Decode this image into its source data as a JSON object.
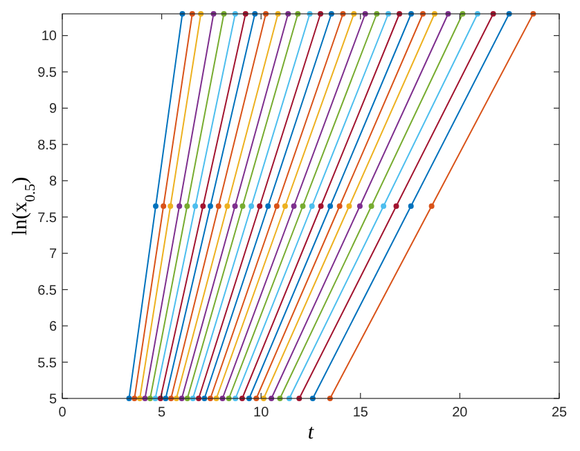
{
  "chart_data": {
    "type": "line",
    "xlabel": "t",
    "ylabel": "ln(x$_{0.5}$)",
    "xlim": [
      0,
      25
    ],
    "ylim": [
      5,
      10.3
    ],
    "xticks": [
      0,
      5,
      10,
      15,
      20,
      25
    ],
    "yticks": [
      5,
      5.5,
      6,
      6.5,
      7,
      7.5,
      8,
      8.5,
      9,
      9.5,
      10
    ],
    "grid": false,
    "marker": "circle",
    "line_style": "solid",
    "series": [
      {
        "color": "#0072bd",
        "x": [
          3.36,
          4.7,
          6.04
        ],
        "values": [
          5,
          7.65,
          10.3
        ]
      },
      {
        "color": "#d95319",
        "x": [
          3.63,
          5.09,
          6.54
        ],
        "values": [
          5,
          7.65,
          10.3
        ]
      },
      {
        "color": "#edb120",
        "x": [
          3.9,
          5.44,
          6.97
        ],
        "values": [
          5,
          7.65,
          10.3
        ]
      },
      {
        "color": "#7e2f8e",
        "x": [
          4.16,
          5.89,
          7.61
        ],
        "values": [
          5,
          7.65,
          10.3
        ]
      },
      {
        "color": "#77ac30",
        "x": [
          4.42,
          6.28,
          8.13
        ],
        "values": [
          5,
          7.65,
          10.3
        ]
      },
      {
        "color": "#4dbeee",
        "x": [
          4.68,
          6.69,
          8.7
        ],
        "values": [
          5,
          7.65,
          10.3
        ]
      },
      {
        "color": "#a2142f",
        "x": [
          4.94,
          7.08,
          9.22
        ],
        "values": [
          5,
          7.65,
          10.3
        ]
      },
      {
        "color": "#0072bd",
        "x": [
          5.2,
          7.45,
          9.69
        ],
        "values": [
          5,
          7.65,
          10.3
        ]
      },
      {
        "color": "#d95319",
        "x": [
          5.47,
          7.86,
          10.24
        ],
        "values": [
          5,
          7.65,
          10.3
        ]
      },
      {
        "color": "#edb120",
        "x": [
          5.74,
          8.3,
          10.85
        ],
        "values": [
          5,
          7.65,
          10.3
        ]
      },
      {
        "color": "#7e2f8e",
        "x": [
          6.01,
          8.69,
          11.36
        ],
        "values": [
          5,
          7.65,
          10.3
        ]
      },
      {
        "color": "#77ac30",
        "x": [
          6.29,
          9.07,
          11.85
        ],
        "values": [
          5,
          7.65,
          10.3
        ]
      },
      {
        "color": "#4dbeee",
        "x": [
          6.57,
          9.51,
          12.45
        ],
        "values": [
          5,
          7.65,
          10.3
        ]
      },
      {
        "color": "#a2142f",
        "x": [
          6.86,
          9.93,
          12.99
        ],
        "values": [
          5,
          7.65,
          10.3
        ]
      },
      {
        "color": "#0072bd",
        "x": [
          7.15,
          10.35,
          13.54
        ],
        "values": [
          5,
          7.65,
          10.3
        ]
      },
      {
        "color": "#d95319",
        "x": [
          7.45,
          10.79,
          14.12
        ],
        "values": [
          5,
          7.65,
          10.3
        ]
      },
      {
        "color": "#edb120",
        "x": [
          7.75,
          11.21,
          14.67
        ],
        "values": [
          5,
          7.65,
          10.3
        ]
      },
      {
        "color": "#7e2f8e",
        "x": [
          8.06,
          11.65,
          15.24
        ],
        "values": [
          5,
          7.65,
          10.3
        ]
      },
      {
        "color": "#77ac30",
        "x": [
          8.38,
          12.1,
          15.82
        ],
        "values": [
          5,
          7.65,
          10.3
        ]
      },
      {
        "color": "#4dbeee",
        "x": [
          8.71,
          12.56,
          16.4
        ],
        "values": [
          5,
          7.65,
          10.3
        ]
      },
      {
        "color": "#a2142f",
        "x": [
          9.05,
          13.01,
          16.96
        ],
        "values": [
          5,
          7.65,
          10.3
        ]
      },
      {
        "color": "#0072bd",
        "x": [
          9.4,
          13.48,
          17.55
        ],
        "values": [
          5,
          7.65,
          10.3
        ]
      },
      {
        "color": "#d95319",
        "x": [
          9.76,
          13.95,
          18.14
        ],
        "values": [
          5,
          7.65,
          10.3
        ]
      },
      {
        "color": "#edb120",
        "x": [
          10.13,
          14.43,
          18.73
        ],
        "values": [
          5,
          7.65,
          10.3
        ]
      },
      {
        "color": "#7e2f8e",
        "x": [
          10.52,
          14.97,
          19.41
        ],
        "values": [
          5,
          7.65,
          10.3
        ]
      },
      {
        "color": "#77ac30",
        "x": [
          10.95,
          15.55,
          20.14
        ],
        "values": [
          5,
          7.65,
          10.3
        ]
      },
      {
        "color": "#4dbeee",
        "x": [
          11.42,
          16.16,
          20.89
        ],
        "values": [
          5,
          7.65,
          10.3
        ]
      },
      {
        "color": "#a2142f",
        "x": [
          11.92,
          16.8,
          21.68
        ],
        "values": [
          5,
          7.65,
          10.3
        ]
      },
      {
        "color": "#0072bd",
        "x": [
          12.6,
          17.54,
          22.48
        ],
        "values": [
          5,
          7.65,
          10.3
        ]
      },
      {
        "color": "#d95319",
        "x": [
          13.47,
          18.58,
          23.69
        ],
        "values": [
          5,
          7.65,
          10.3
        ]
      }
    ]
  }
}
